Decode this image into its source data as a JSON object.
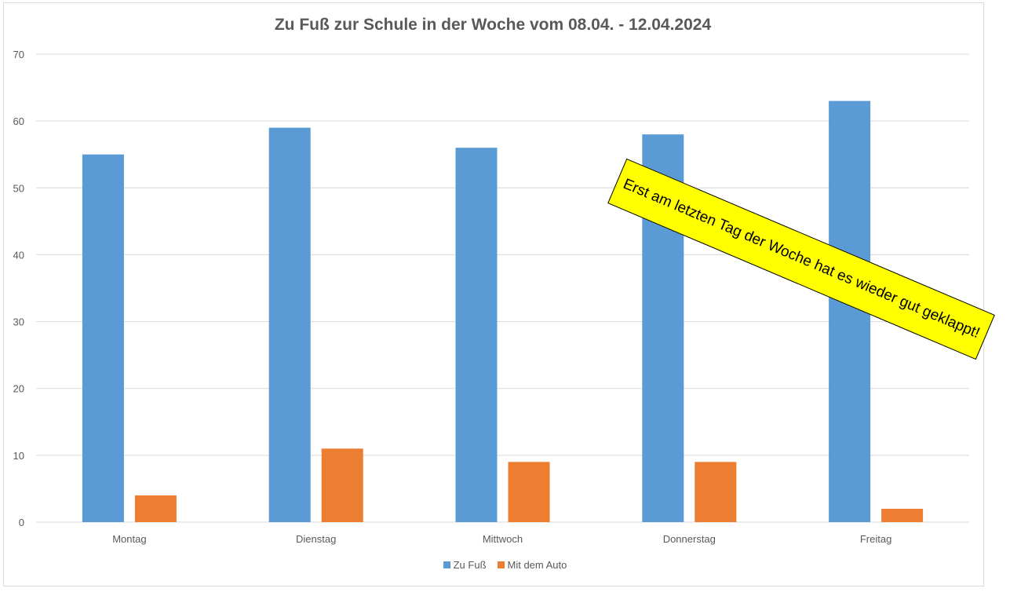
{
  "chart_data": {
    "type": "bar",
    "title": "Zu Fuß zur Schule in der Woche vom 08.04. - 12.04.2024",
    "categories": [
      "Montag",
      "Dienstag",
      "Mittwoch",
      "Donnerstag",
      "Freitag"
    ],
    "series": [
      {
        "name": "Zu Fuß",
        "values": [
          55,
          59,
          56,
          58,
          63
        ],
        "color": "#5b9bd5"
      },
      {
        "name": "Mit dem Auto",
        "values": [
          4,
          11,
          9,
          9,
          2
        ],
        "color": "#ed7d31"
      }
    ],
    "ylim": [
      0,
      70
    ],
    "yticks": [
      0,
      10,
      20,
      30,
      40,
      50,
      60,
      70
    ],
    "grid": true,
    "legend_position": "bottom",
    "annotation": "Erst am letzten Tag der Woche hat es wieder gut geklappt!",
    "annotation_color": "#ffff00"
  }
}
